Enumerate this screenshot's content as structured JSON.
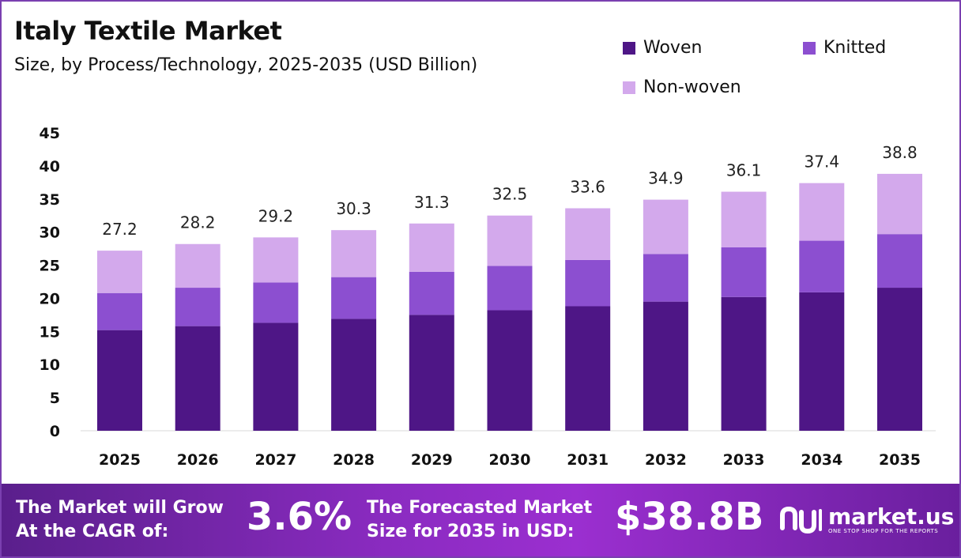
{
  "title": "Italy Textile Market",
  "subtitle": "Size, by Process/Technology, 2025-2035 (USD Billion)",
  "legend": [
    {
      "label": "Woven",
      "color": "#4e1686"
    },
    {
      "label": "Knitted",
      "color": "#8c4fd0"
    },
    {
      "label": "Non-woven",
      "color": "#d3a9ec"
    }
  ],
  "banner": {
    "cagr_label_line1": "The Market will Grow",
    "cagr_label_line2": "At the CAGR of:",
    "cagr_value": "3.6%",
    "forecast_label_line1": "The Forecasted Market",
    "forecast_label_line2": "Size for 2035 in USD:",
    "forecast_value": "$38.8B",
    "logo_name": "market.us",
    "logo_tagline": "ONE STOP SHOP FOR THE REPORTS"
  },
  "chart_data": {
    "type": "bar",
    "stacked": true,
    "categories": [
      "2025",
      "2026",
      "2027",
      "2028",
      "2029",
      "2030",
      "2031",
      "2032",
      "2033",
      "2034",
      "2035"
    ],
    "series": [
      {
        "name": "Woven",
        "color": "#4e1686",
        "values": [
          15.2,
          15.8,
          16.3,
          16.9,
          17.5,
          18.2,
          18.8,
          19.5,
          20.2,
          20.9,
          21.6
        ]
      },
      {
        "name": "Knitted",
        "color": "#8c4fd0",
        "values": [
          5.6,
          5.8,
          6.1,
          6.3,
          6.5,
          6.7,
          7.0,
          7.2,
          7.5,
          7.8,
          8.1
        ]
      },
      {
        "name": "Non-woven",
        "color": "#d3a9ec",
        "values": [
          6.4,
          6.6,
          6.8,
          7.1,
          7.3,
          7.6,
          7.8,
          8.2,
          8.4,
          8.7,
          9.1
        ]
      }
    ],
    "totals": [
      "27.2",
      "28.2",
      "29.2",
      "30.3",
      "31.3",
      "32.5",
      "33.6",
      "34.9",
      "36.1",
      "37.4",
      "38.8"
    ],
    "ylim": [
      0,
      45
    ],
    "yticks": [
      0,
      5,
      10,
      15,
      20,
      25,
      30,
      35,
      40,
      45
    ],
    "grid": false,
    "legend_position": "top-right"
  }
}
